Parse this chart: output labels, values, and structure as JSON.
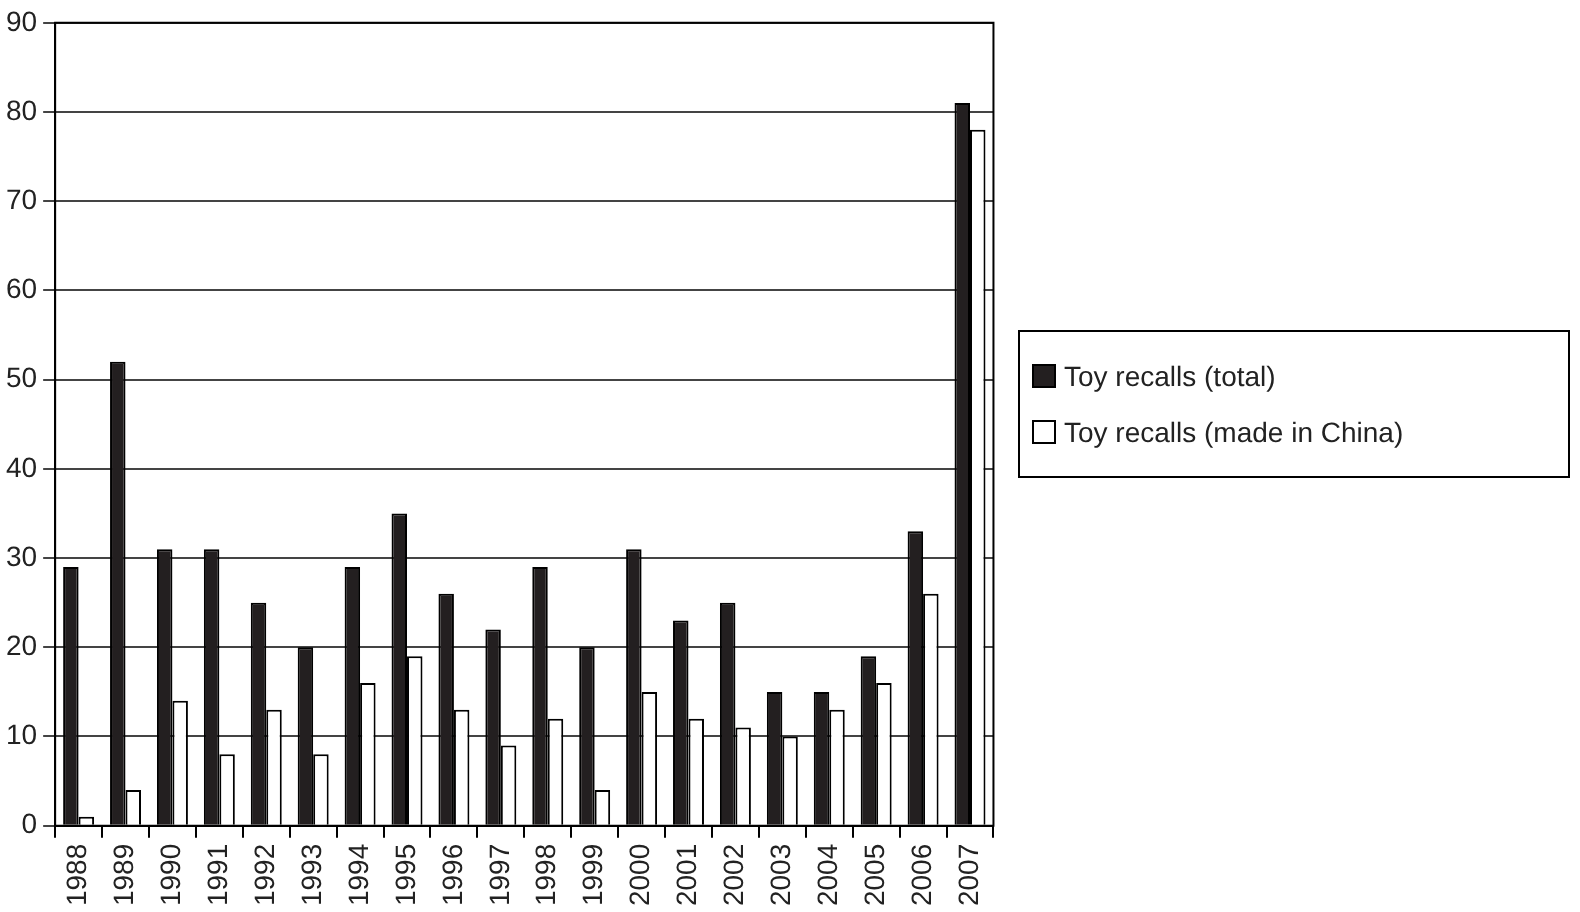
{
  "chart_data": {
    "type": "bar",
    "categories": [
      "1988",
      "1989",
      "1990",
      "1991",
      "1992",
      "1993",
      "1994",
      "1995",
      "1996",
      "1997",
      "1998",
      "1999",
      "2000",
      "2001",
      "2002",
      "2003",
      "2004",
      "2005",
      "2006",
      "2007"
    ],
    "series": [
      {
        "name": "Toy recalls (total)",
        "color": "#231f20",
        "values": [
          29,
          52,
          31,
          31,
          25,
          20,
          29,
          35,
          26,
          22,
          29,
          20,
          31,
          23,
          25,
          15,
          15,
          19,
          33,
          81
        ]
      },
      {
        "name": "Toy recalls (made in China)",
        "color": "#ffffff",
        "values": [
          1,
          4,
          14,
          8,
          13,
          8,
          16,
          19,
          13,
          9,
          12,
          4,
          15,
          12,
          11,
          10,
          13,
          16,
          26,
          78
        ]
      }
    ],
    "ylim": [
      0,
      90
    ],
    "yticks": [
      0,
      10,
      20,
      30,
      40,
      50,
      60,
      70,
      80,
      90
    ],
    "grid": "y",
    "legend": "right"
  }
}
